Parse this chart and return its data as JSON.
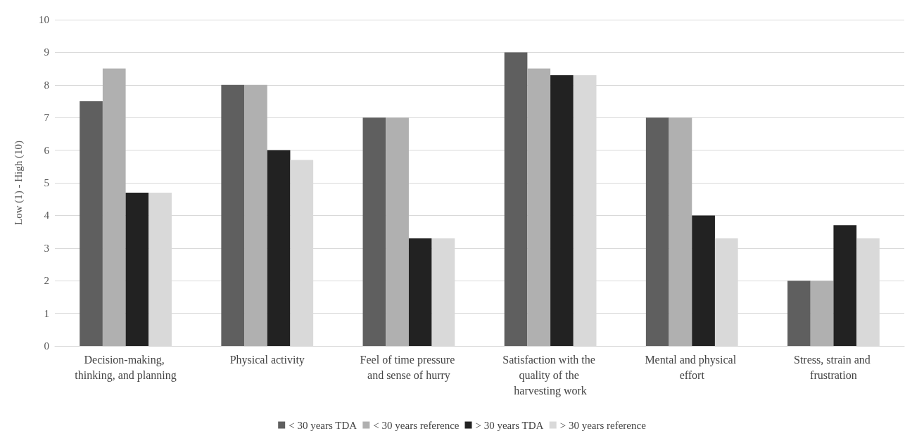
{
  "chart_data": {
    "type": "bar",
    "ylabel": "Low (1) - High (10)",
    "categories": [
      "Decision-making, thinking, and planning",
      "Physical activity",
      "Feel of time pressure and sense of hurry",
      "Satisfaction with the quality of the harvesting work",
      "Mental and physical effort",
      "Stress, strain and frustration"
    ],
    "series": [
      {
        "name": "< 30 years TDA",
        "color": "#5f5f5f",
        "values": [
          7.5,
          8,
          7,
          9,
          7,
          2
        ]
      },
      {
        "name": "< 30 years reference",
        "color": "#b0b0b0",
        "values": [
          8.5,
          8,
          7,
          8.5,
          7,
          2
        ]
      },
      {
        "name": "> 30 years TDA",
        "color": "#222222",
        "values": [
          4.7,
          6,
          3.3,
          8.3,
          4,
          3.7
        ]
      },
      {
        "name": "> 30 years reference",
        "color": "#d9d9d9",
        "values": [
          4.7,
          5.7,
          3.3,
          8.3,
          3.3,
          3.3
        ]
      }
    ],
    "ylim": [
      0,
      10
    ],
    "yticks": [
      0,
      1,
      2,
      3,
      4,
      5,
      6,
      7,
      8,
      9,
      10
    ],
    "grid": "y",
    "legend": "bottom"
  }
}
